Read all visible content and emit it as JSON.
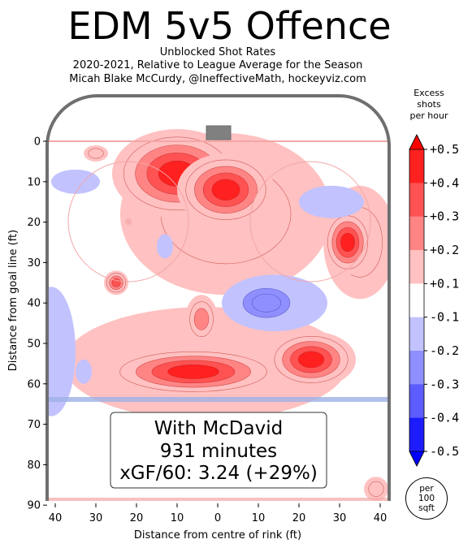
{
  "title": "EDM 5v5 Offence",
  "subtitle_lines": [
    "Unblocked Shot Rates",
    "2020-2021, Relative to League Average for the Season",
    "Micah Blake McCurdy, @IneffectiveMath, hockeyviz.com"
  ],
  "colorbar": {
    "title_lines": [
      "Excess",
      "shots",
      "per hour"
    ],
    "ticks": [
      "+0.5",
      "+0.4",
      "+0.3",
      "+0.2",
      "+0.1",
      "-0.1",
      "-0.2",
      "-0.3",
      "-0.4",
      "-0.5"
    ],
    "colors": [
      "#ff2020",
      "#ff5252",
      "#ff8585",
      "#ffc1c1",
      "#ffffff",
      "#c2c2ff",
      "#8f8fff",
      "#5c5cff",
      "#1c1cff"
    ],
    "units_lines": [
      "per",
      "100",
      "sqft"
    ]
  },
  "annotation": {
    "line1": "With McDavid",
    "line2": "931 minutes",
    "line3": "xGF/60: 3.24 (+29%)"
  },
  "chart_data": {
    "type": "heatmap",
    "title": "EDM 5v5 Offence",
    "xlabel": "Distance from centre of rink (ft)",
    "ylabel": "Distance from goal line (ft)",
    "xlim": [
      -42.5,
      42.5
    ],
    "ylim": [
      90,
      -11
    ],
    "x_tick_labels": [
      "40",
      "30",
      "20",
      "10",
      "0",
      "10",
      "20",
      "30",
      "40"
    ],
    "x_tick_values": [
      -40,
      -30,
      -20,
      -10,
      0,
      10,
      20,
      30,
      40
    ],
    "y_ticks": [
      0,
      10,
      20,
      30,
      40,
      50,
      60,
      70,
      80,
      90
    ],
    "blobs": [
      {
        "x": -10,
        "y": 8,
        "rx": 16,
        "ry": 11,
        "level": 0.5
      },
      {
        "x": 2,
        "y": 12,
        "rx": 12,
        "ry": 9,
        "level": 0.5
      },
      {
        "x": 32,
        "y": 25,
        "rx": 6,
        "ry": 8,
        "level": 0.5
      },
      {
        "x": -6,
        "y": 57,
        "rx": 22,
        "ry": 6,
        "level": 0.5
      },
      {
        "x": 23,
        "y": 54,
        "rx": 11,
        "ry": 7,
        "level": 0.5
      },
      {
        "x": -25,
        "y": 35,
        "rx": 3,
        "ry": 3,
        "level": 0.4
      },
      {
        "x": -4,
        "y": 44,
        "rx": 4,
        "ry": 6,
        "level": 0.3
      },
      {
        "x": 2,
        "y": 18,
        "rx": 26,
        "ry": 20,
        "level": 0.2
      },
      {
        "x": -3,
        "y": 55,
        "rx": 35,
        "ry": 14,
        "level": 0.1
      },
      {
        "x": 35,
        "y": 25,
        "rx": 9,
        "ry": 14,
        "level": 0.2
      },
      {
        "x": 12,
        "y": 40,
        "rx": 8,
        "ry": 5,
        "level": -0.3
      },
      {
        "x": 14,
        "y": 40,
        "rx": 13,
        "ry": 7,
        "level": -0.1
      },
      {
        "x": -41,
        "y": 52,
        "rx": 6,
        "ry": 16,
        "level": -0.1
      },
      {
        "x": -35,
        "y": 10,
        "rx": 6,
        "ry": 3,
        "level": -0.1
      },
      {
        "x": 28,
        "y": 15,
        "rx": 8,
        "ry": 4,
        "level": -0.1
      },
      {
        "x": -13,
        "y": 26,
        "rx": 2,
        "ry": 3,
        "level": -0.1
      },
      {
        "x": -33,
        "y": 57,
        "rx": 2,
        "ry": 3,
        "level": -0.1
      },
      {
        "x": 39,
        "y": 86,
        "rx": 3,
        "ry": 3,
        "level": 0.2
      },
      {
        "x": -30,
        "y": 3,
        "rx": 3,
        "ry": 2,
        "level": 0.2
      }
    ]
  }
}
